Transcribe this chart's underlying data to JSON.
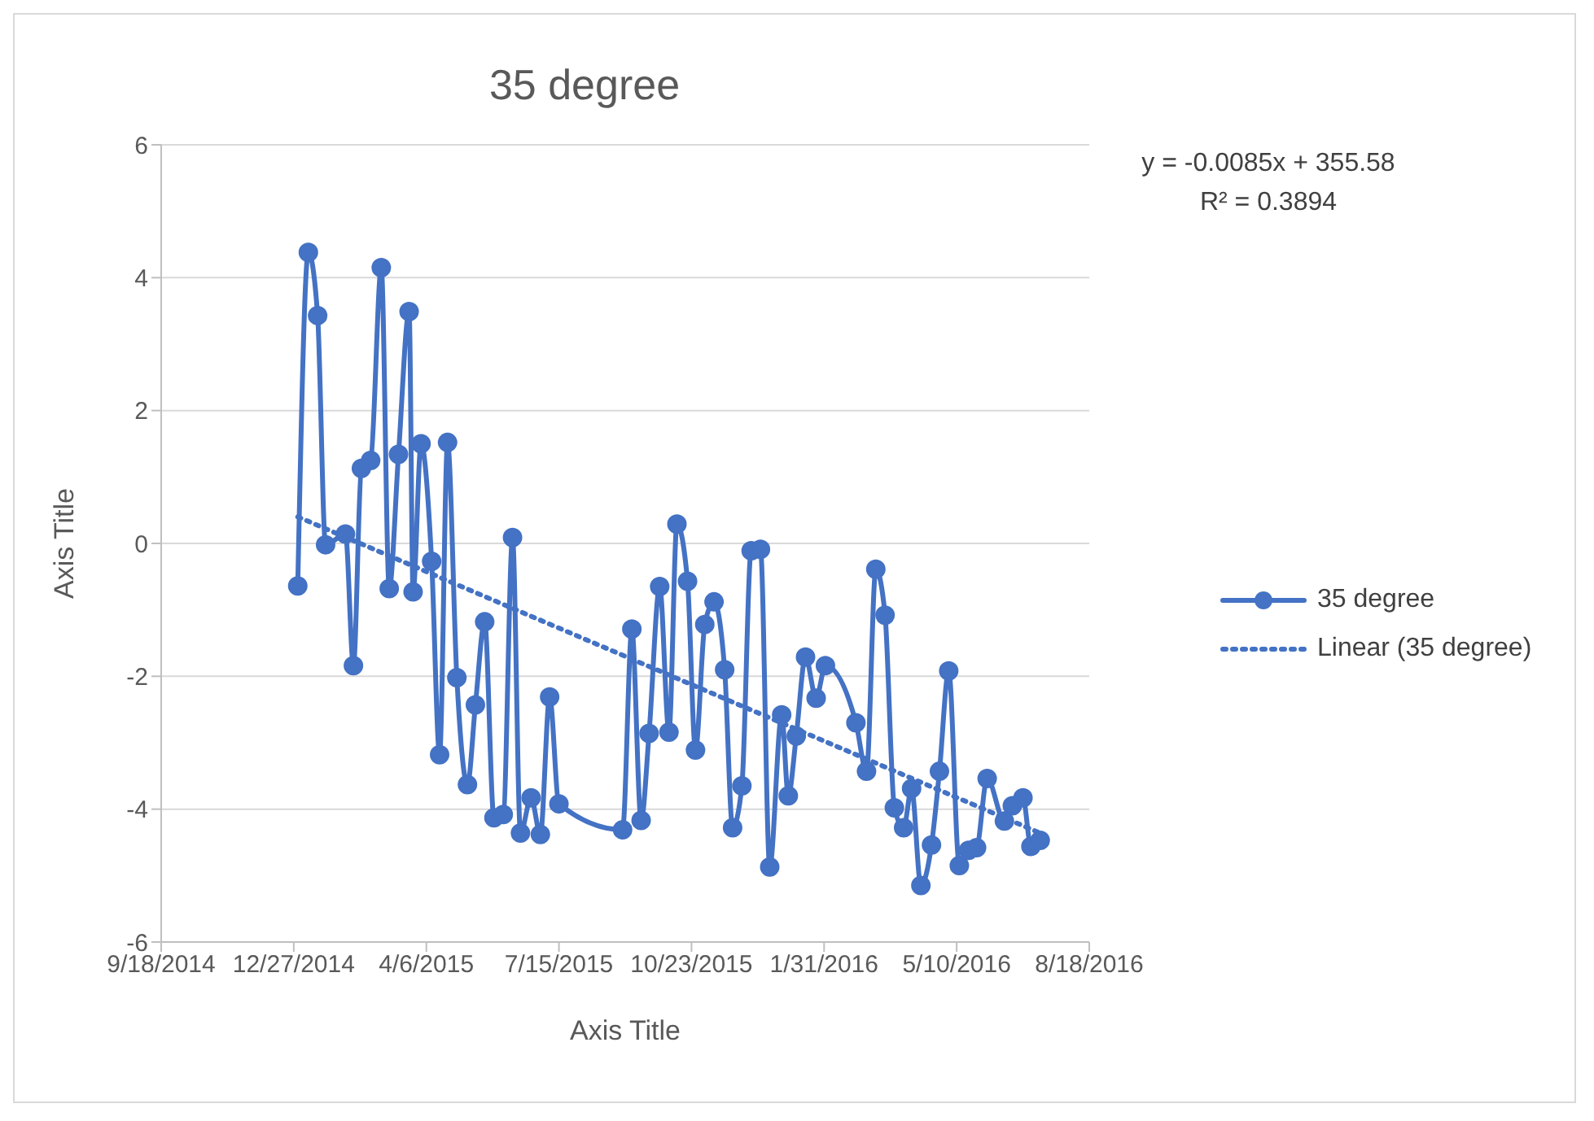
{
  "chart_data": {
    "type": "line",
    "title": "35 degree",
    "xlabel": "Axis Title",
    "ylabel": "Axis Title",
    "annotations": [
      "y = -0.0085x + 355.58",
      "R² = 0.3894"
    ],
    "xlim": [
      "2014-09-18",
      "2016-08-18"
    ],
    "xticks": [
      {
        "value": "2014-09-18",
        "label": "9/18/2014"
      },
      {
        "value": "2014-12-27",
        "label": "12/27/2014"
      },
      {
        "value": "2015-04-06",
        "label": "4/6/2015"
      },
      {
        "value": "2015-07-15",
        "label": "7/15/2015"
      },
      {
        "value": "2015-10-23",
        "label": "10/23/2015"
      },
      {
        "value": "2016-01-31",
        "label": "1/31/2016"
      },
      {
        "value": "2016-05-10",
        "label": "5/10/2016"
      },
      {
        "value": "2016-08-18",
        "label": "8/18/2016"
      }
    ],
    "ylim": [
      -6,
      6
    ],
    "yticks": [
      -6,
      -4,
      -2,
      0,
      2,
      4,
      6
    ],
    "grid": "y",
    "legend": "right",
    "series": [
      {
        "name": "35 degree",
        "color": "#4472c4",
        "marker": "circle",
        "line_style": "solid",
        "x": [
          "2014-12-30",
          "2015-01-07",
          "2015-01-14",
          "2015-01-20",
          "2015-02-04",
          "2015-02-10",
          "2015-02-16",
          "2015-02-23",
          "2015-03-03",
          "2015-03-09",
          "2015-03-16",
          "2015-03-24",
          "2015-03-27",
          "2015-04-02",
          "2015-04-10",
          "2015-04-16",
          "2015-04-22",
          "2015-04-29",
          "2015-05-07",
          "2015-05-13",
          "2015-05-20",
          "2015-05-27",
          "2015-06-03",
          "2015-06-10",
          "2015-06-16",
          "2015-06-24",
          "2015-07-01",
          "2015-07-08",
          "2015-07-15",
          "2015-09-01",
          "2015-09-08",
          "2015-09-15",
          "2015-09-21",
          "2015-09-29",
          "2015-10-06",
          "2015-10-12",
          "2015-10-20",
          "2015-10-26",
          "2015-11-02",
          "2015-11-09",
          "2015-11-17",
          "2015-11-23",
          "2015-11-30",
          "2015-12-07",
          "2015-12-14",
          "2015-12-21",
          "2015-12-30",
          "2016-01-04",
          "2016-01-10",
          "2016-01-17",
          "2016-01-25",
          "2016-02-01",
          "2016-02-24",
          "2016-03-03",
          "2016-03-10",
          "2016-03-17",
          "2016-03-24",
          "2016-03-31",
          "2016-04-06",
          "2016-04-13",
          "2016-04-21",
          "2016-04-27",
          "2016-05-04",
          "2016-05-12",
          "2016-05-19",
          "2016-05-25",
          "2016-06-02",
          "2016-06-15",
          "2016-06-21",
          "2016-06-29",
          "2016-07-05",
          "2016-07-12"
        ],
        "values": [
          -0.64,
          4.38,
          3.43,
          -0.02,
          0.14,
          -1.84,
          1.13,
          1.25,
          4.15,
          -0.68,
          1.34,
          3.49,
          -0.73,
          1.5,
          -0.27,
          -3.18,
          1.52,
          -2.02,
          -3.63,
          -2.43,
          -1.18,
          -4.13,
          -4.08,
          0.09,
          -4.36,
          -3.83,
          -4.38,
          -2.31,
          -3.92,
          -4.31,
          -1.29,
          -4.17,
          -2.86,
          -0.65,
          -2.84,
          0.29,
          -0.57,
          -3.11,
          -1.22,
          -0.88,
          -1.9,
          -4.28,
          -3.65,
          -0.11,
          -0.09,
          -4.87,
          -2.58,
          -3.8,
          -2.9,
          -1.71,
          -2.33,
          -1.84,
          -2.7,
          -3.43,
          -0.39,
          -1.08,
          -3.98,
          -4.28,
          -3.69,
          -5.15,
          -4.54,
          -3.43,
          -1.92,
          -4.85,
          -4.62,
          -4.58,
          -3.54,
          -4.18,
          -3.95,
          -3.83,
          -4.56,
          -4.47
        ]
      },
      {
        "name": "Linear (35 degree)",
        "color": "#4472c4",
        "marker": "none",
        "line_style": "dotted",
        "x": [
          "2014-12-30",
          "2016-07-12"
        ],
        "values": [
          0.4,
          -4.36
        ]
      }
    ]
  }
}
